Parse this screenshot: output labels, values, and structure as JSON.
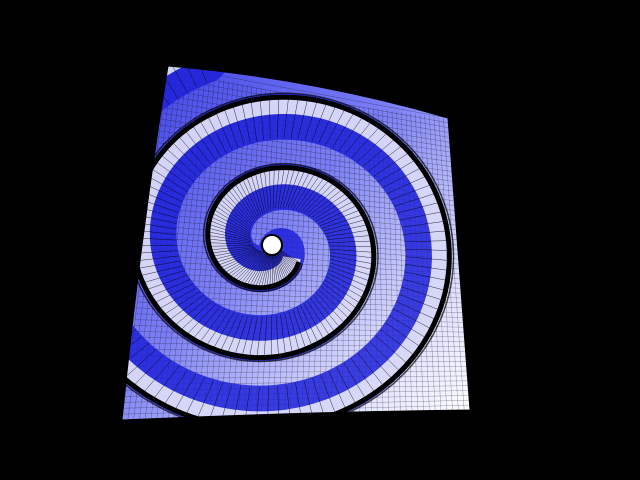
{
  "scene": {
    "subject": "spiral-mesh-surface",
    "background_color": "#000000",
    "surface_color_deep": "#1e22d8",
    "surface_color_mid": "#6a6cf2",
    "surface_color_light": "#ffffff",
    "wire_color": "#000000"
  }
}
